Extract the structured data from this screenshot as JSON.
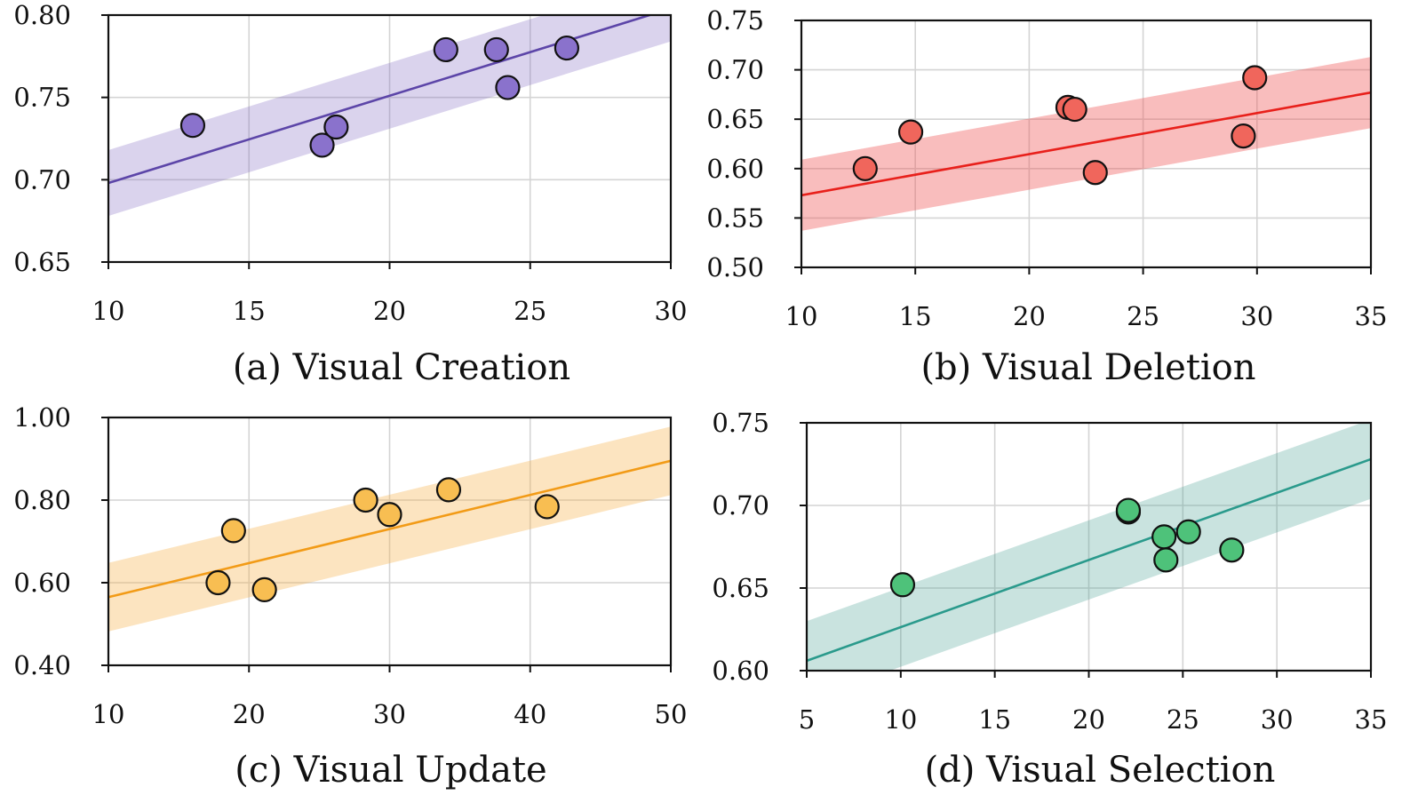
{
  "chart_data": [
    {
      "type": "scatter",
      "title": "(a) Visual Creation",
      "xlabel": "",
      "ylabel": "",
      "xlim": [
        10,
        30
      ],
      "ylim": [
        0.65,
        0.8
      ],
      "xticks": [
        "10",
        "15",
        "20",
        "25",
        "30"
      ],
      "yticks": [
        "0.65",
        "0.70",
        "0.75",
        "0.80"
      ],
      "grid": true,
      "color": "#5c45a8",
      "fill": "#7b62c0",
      "band_opacity": 0.28,
      "point_fill": "#8a72cc",
      "points": [
        [
          13.0,
          0.733
        ],
        [
          17.6,
          0.721
        ],
        [
          18.1,
          0.732
        ],
        [
          22.0,
          0.779
        ],
        [
          23.8,
          0.779
        ],
        [
          24.2,
          0.756
        ],
        [
          26.3,
          0.78
        ]
      ],
      "fit": {
        "x": [
          10,
          30
        ],
        "y": [
          0.698,
          0.804
        ]
      },
      "band_halfwidth": 0.02
    },
    {
      "type": "scatter",
      "title": "(b) Visual Deletion",
      "xlabel": "",
      "ylabel": "",
      "xlim": [
        10,
        35
      ],
      "ylim": [
        0.5,
        0.75
      ],
      "xticks": [
        "10",
        "15",
        "20",
        "25",
        "30",
        "35"
      ],
      "yticks": [
        "0.50",
        "0.55",
        "0.60",
        "0.65",
        "0.70",
        "0.75"
      ],
      "grid": true,
      "color": "#e8201b",
      "fill": "#f05a5a",
      "band_opacity": 0.4,
      "point_fill": "#f0665c",
      "points": [
        [
          12.8,
          0.6
        ],
        [
          14.8,
          0.637
        ],
        [
          21.7,
          0.662
        ],
        [
          22.0,
          0.66
        ],
        [
          22.9,
          0.596
        ],
        [
          29.4,
          0.633
        ],
        [
          29.9,
          0.692
        ]
      ],
      "fit": {
        "x": [
          10,
          35
        ],
        "y": [
          0.573,
          0.677
        ]
      },
      "band_halfwidth": 0.036
    },
    {
      "type": "scatter",
      "title": "(c) Visual Update",
      "xlabel": "",
      "ylabel": "",
      "xlim": [
        10,
        50
      ],
      "ylim": [
        0.4,
        1.0
      ],
      "xticks": [
        "10",
        "20",
        "30",
        "40",
        "50"
      ],
      "yticks": [
        "0.40",
        "0.60",
        "0.80",
        "1.00"
      ],
      "grid": true,
      "color": "#f29b17",
      "fill": "#f5b34a",
      "band_opacity": 0.35,
      "point_fill": "#f8be52",
      "points": [
        [
          17.8,
          0.6
        ],
        [
          18.9,
          0.726
        ],
        [
          21.1,
          0.583
        ],
        [
          28.3,
          0.8
        ],
        [
          30.0,
          0.765
        ],
        [
          34.2,
          0.825
        ],
        [
          41.2,
          0.784
        ]
      ],
      "fit": {
        "x": [
          10,
          50
        ],
        "y": [
          0.565,
          0.895
        ]
      },
      "band_halfwidth": 0.083
    },
    {
      "type": "scatter",
      "title": "(d) Visual Selection",
      "xlabel": "",
      "ylabel": "",
      "xlim": [
        5,
        35
      ],
      "ylim": [
        0.6,
        0.75
      ],
      "xticks": [
        "5",
        "10",
        "15",
        "20",
        "25",
        "30",
        "35"
      ],
      "yticks": [
        "0.60",
        "0.65",
        "0.70",
        "0.75"
      ],
      "grid": true,
      "color": "#2a9a8c",
      "fill": "#3d9a8c",
      "band_opacity": 0.28,
      "point_fill": "#4ec27a",
      "points": [
        [
          10.1,
          0.652
        ],
        [
          22.1,
          0.696
        ],
        [
          22.1,
          0.697
        ],
        [
          24.0,
          0.681
        ],
        [
          24.1,
          0.667
        ],
        [
          25.3,
          0.684
        ],
        [
          27.6,
          0.673
        ]
      ],
      "fit": {
        "x": [
          5,
          35
        ],
        "y": [
          0.606,
          0.728
        ]
      },
      "band_halfwidth": 0.024
    }
  ]
}
